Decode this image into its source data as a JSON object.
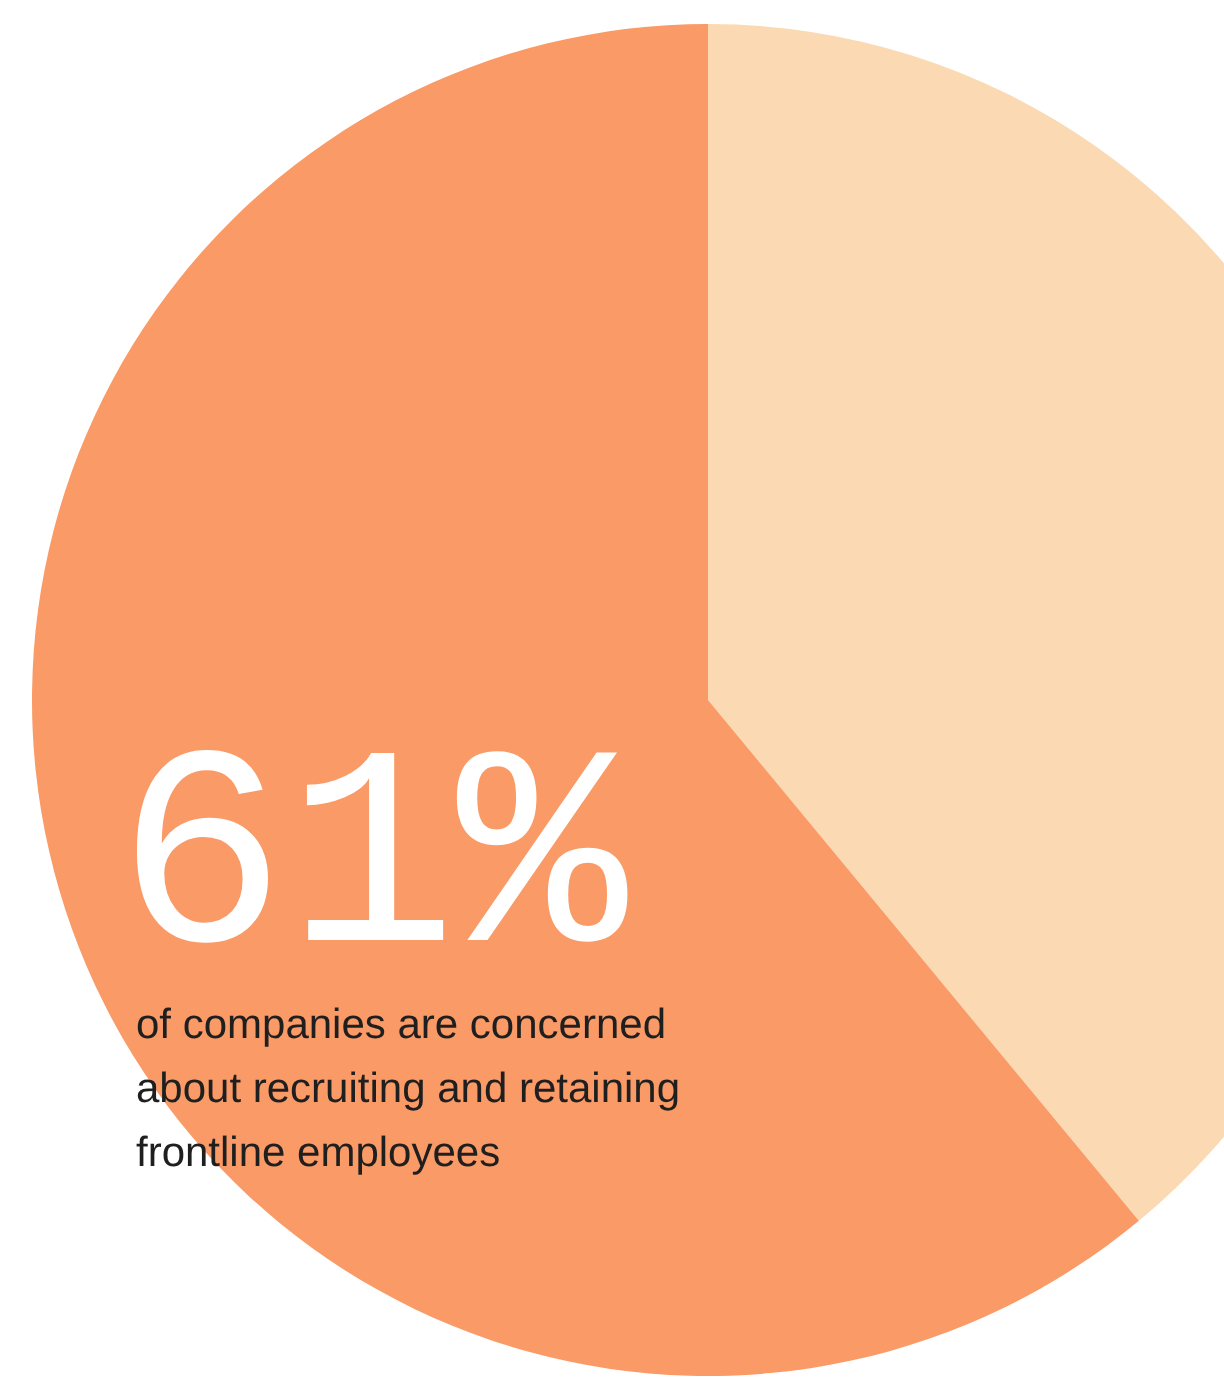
{
  "chart_data": {
    "type": "pie",
    "categories": [
      null,
      "of companies are concerned about recruiting and retaining frontline employees"
    ],
    "values": [
      39,
      61
    ],
    "colors": [
      "#fbd9b3",
      "#fa9a66"
    ],
    "value_labels": [
      null,
      "61%"
    ]
  }
}
